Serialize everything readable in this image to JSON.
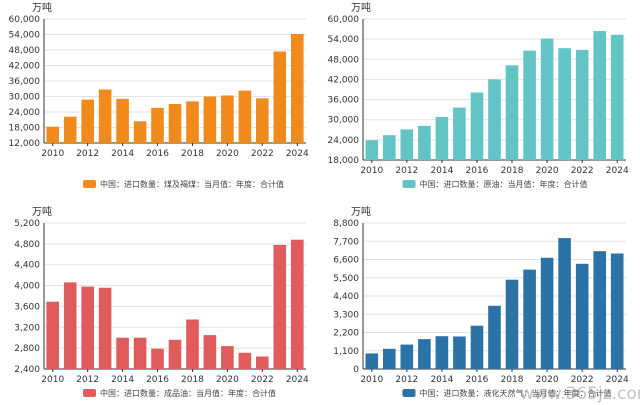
{
  "watermark": "www.365jz.com",
  "chart_data": [
    {
      "type": "bar",
      "unit": "万吨",
      "legend": "中国：进口数量：煤及褐煤：当月值：年度：合计值",
      "color": "#f08a1c",
      "categories": [
        "2010",
        "2011",
        "2012",
        "2013",
        "2014",
        "2015",
        "2016",
        "2017",
        "2018",
        "2019",
        "2020",
        "2021",
        "2022",
        "2023",
        "2024"
      ],
      "values": [
        18300,
        22200,
        28800,
        32700,
        29100,
        20400,
        25600,
        27100,
        28100,
        30000,
        30400,
        32300,
        29300,
        47400,
        54200
      ],
      "ylim": [
        12000,
        60000
      ],
      "yticks": [
        "12,000",
        "18,000",
        "24,000",
        "30,000",
        "36,000",
        "42,000",
        "48,000",
        "54,000",
        "60,000"
      ],
      "xtick_labels": [
        "2010",
        "2012",
        "2014",
        "2016",
        "2018",
        "2020",
        "2022",
        "2024"
      ],
      "grid": true
    },
    {
      "type": "bar",
      "unit": "万吨",
      "legend": "中国：进口数量：原油：当月值：年度：合计值",
      "color": "#62c4c4",
      "categories": [
        "2010",
        "2011",
        "2012",
        "2013",
        "2014",
        "2015",
        "2016",
        "2017",
        "2018",
        "2019",
        "2020",
        "2021",
        "2022",
        "2023",
        "2024"
      ],
      "values": [
        23900,
        25400,
        27100,
        28200,
        30800,
        33600,
        38100,
        42000,
        46200,
        50600,
        54200,
        51300,
        50800,
        56400,
        55300
      ],
      "ylim": [
        18000,
        60000
      ],
      "yticks": [
        "18,000",
        "24,000",
        "30,000",
        "36,000",
        "42,000",
        "48,000",
        "54,000",
        "60,000"
      ],
      "xtick_labels": [
        "2010",
        "2012",
        "2014",
        "2016",
        "2018",
        "2020",
        "2022",
        "2024"
      ],
      "grid": true
    },
    {
      "type": "bar",
      "unit": "万吨",
      "legend": "中国：进口数量：成品油：当月值：年度：合计值",
      "color": "#e05b5b",
      "categories": [
        "2010",
        "2011",
        "2012",
        "2013",
        "2014",
        "2015",
        "2016",
        "2017",
        "2018",
        "2019",
        "2020",
        "2021",
        "2022",
        "2023",
        "2024"
      ],
      "values": [
        3690,
        4060,
        3980,
        3960,
        3000,
        3000,
        2790,
        2960,
        3350,
        3050,
        2840,
        2710,
        2640,
        4780,
        4880
      ],
      "ylim": [
        2400,
        5200
      ],
      "yticks": [
        "2,400",
        "2,800",
        "3,200",
        "3,600",
        "4,000",
        "4,400",
        "4,800",
        "5,200"
      ],
      "xtick_labels": [
        "2010",
        "2012",
        "2014",
        "2016",
        "2018",
        "2020",
        "2022",
        "2024"
      ],
      "grid": true
    },
    {
      "type": "bar",
      "unit": "万吨",
      "legend": "中国：进口数量：液化天然气：当月值：年度：合计值",
      "color": "#2b73a6",
      "categories": [
        "2010",
        "2011",
        "2012",
        "2013",
        "2014",
        "2015",
        "2016",
        "2017",
        "2018",
        "2019",
        "2020",
        "2021",
        "2022",
        "2023",
        "2024"
      ],
      "values": [
        940,
        1220,
        1470,
        1800,
        1980,
        1960,
        2610,
        3810,
        5380,
        5990,
        6700,
        7890,
        6340,
        7100,
        6960
      ],
      "ylim": [
        0,
        8800
      ],
      "yticks": [
        "0",
        "1,100",
        "2,200",
        "3,300",
        "4,400",
        "5,500",
        "6,600",
        "7,700",
        "8,800"
      ],
      "xtick_labels": [
        "2010",
        "2012",
        "2014",
        "2016",
        "2018",
        "2020",
        "2022",
        "2024"
      ],
      "grid": true
    }
  ]
}
